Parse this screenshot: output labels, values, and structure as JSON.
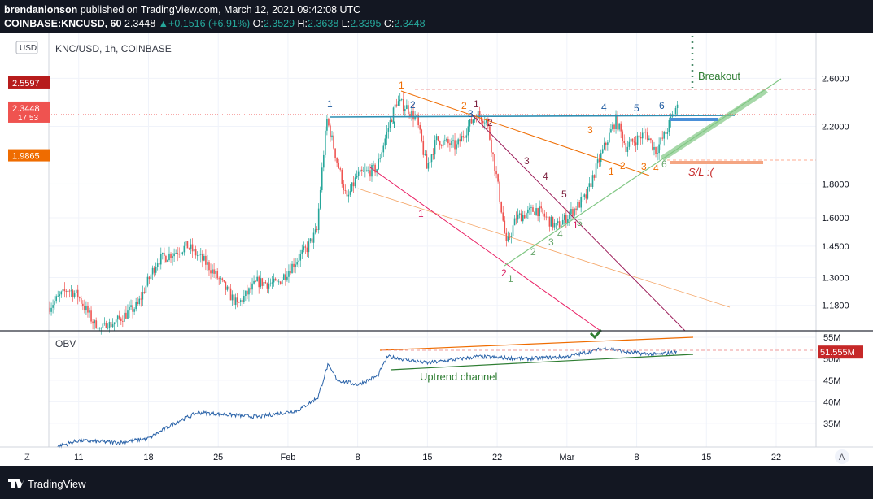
{
  "header": {
    "author": "brendanlonson",
    "published_text": "published on TradingView.com, March 12, 2021 09:42:08 UTC",
    "symbol": "COINBASE:KNCUSD, 60",
    "last": "2.3448",
    "change": "+0.1516 (+6.91%)",
    "o_label": "O:",
    "o_value": "2.3529",
    "h_label": "H:",
    "h_value": "2.3638",
    "l_label": "L:",
    "l_value": "2.3395",
    "c_label": "C:",
    "c_value": "2.3448"
  },
  "footer": {
    "brand": "TradingView"
  },
  "chart_data": [
    {
      "type": "candlestick",
      "title": "KNC/USD, 1h, COINBASE",
      "currency_button": "USD",
      "y_scale": "log",
      "ylim": [
        1.08,
        3.05
      ],
      "y_tick_labels": [
        "1.1800",
        "1.3000",
        "1.4500",
        "1.6000",
        "1.8000",
        "2.2000",
        "2.6000"
      ],
      "x_tick_labels": [
        "11",
        "18",
        "25",
        "Feb",
        "8",
        "15",
        "22",
        "Mar",
        "8",
        "15",
        "22"
      ],
      "x_tick_dates": [
        "2021-01-11",
        "2021-01-18",
        "2021-01-25",
        "2021-02-01",
        "2021-02-08",
        "2021-02-15",
        "2021-02-22",
        "2021-03-01",
        "2021-03-08",
        "2021-03-15",
        "2021-03-22"
      ],
      "xlim": [
        "2021-01-08",
        "2021-03-26"
      ],
      "price_badges": [
        {
          "label": "2.5597",
          "value": 2.5597,
          "color": "#b71c1c"
        },
        {
          "label": "2.3448",
          "sub": "17:53",
          "value": 2.3448,
          "color": "#ef5350"
        },
        {
          "label": "1.9865",
          "value": 1.9865,
          "color": "#ef6c00"
        }
      ],
      "series_anchors": [
        [
          "2021-01-08",
          1.17
        ],
        [
          "2021-01-10",
          1.25
        ],
        [
          "2021-01-11",
          1.22
        ],
        [
          "2021-01-13",
          1.08
        ],
        [
          "2021-01-15",
          1.12
        ],
        [
          "2021-01-17",
          1.18
        ],
        [
          "2021-01-19",
          1.38
        ],
        [
          "2021-01-22",
          1.45
        ],
        [
          "2021-01-24",
          1.36
        ],
        [
          "2021-01-27",
          1.18
        ],
        [
          "2021-01-29",
          1.28
        ],
        [
          "2021-01-31",
          1.27
        ],
        [
          "2021-02-03",
          1.44
        ],
        [
          "2021-02-04",
          1.53
        ],
        [
          "2021-02-05",
          2.25
        ],
        [
          "2021-02-06",
          1.95
        ],
        [
          "2021-02-07",
          1.7
        ],
        [
          "2021-02-08",
          1.85
        ],
        [
          "2021-02-10",
          1.9
        ],
        [
          "2021-02-12",
          2.4
        ],
        [
          "2021-02-13",
          2.35
        ],
        [
          "2021-02-14",
          2.25
        ],
        [
          "2021-02-15",
          1.9
        ],
        [
          "2021-02-16",
          2.1
        ],
        [
          "2021-02-18",
          2.05
        ],
        [
          "2021-02-20",
          2.3
        ],
        [
          "2021-02-21",
          2.25
        ],
        [
          "2021-02-22",
          1.85
        ],
        [
          "2021-02-23",
          1.45
        ],
        [
          "2021-02-24",
          1.6
        ],
        [
          "2021-02-26",
          1.65
        ],
        [
          "2021-02-28",
          1.55
        ],
        [
          "2021-03-01",
          1.6
        ],
        [
          "2021-03-03",
          1.72
        ],
        [
          "2021-03-04",
          1.9
        ],
        [
          "2021-03-06",
          2.25
        ],
        [
          "2021-03-07",
          2.05
        ],
        [
          "2021-03-08",
          2.1
        ],
        [
          "2021-03-09",
          2.15
        ],
        [
          "2021-03-10",
          2.02
        ],
        [
          "2021-03-11",
          2.15
        ],
        [
          "2021-03-12",
          2.3448
        ]
      ],
      "annotations": {
        "texts": [
          {
            "text": "Breakout",
            "color": "#2e7d32"
          },
          {
            "text": "S/L :(",
            "color": "#c62828"
          }
        ],
        "wave_labels_blue": [
          "1",
          "2",
          "3",
          "4",
          "5",
          "6"
        ],
        "wave_labels_orange": [
          "1",
          "2",
          "3",
          "1",
          "2",
          "3",
          "4"
        ],
        "wave_labels_purple": [
          "1",
          "2",
          "3",
          "4",
          "5"
        ],
        "wave_labels_pink": [
          "1",
          "2",
          "1"
        ],
        "wave_labels_green": [
          "1",
          "2",
          "3",
          "4",
          "5",
          "6"
        ],
        "wave_labels_teal": [
          "1"
        ]
      }
    },
    {
      "type": "line",
      "title": "OBV",
      "y_unit": "M",
      "ylim": [
        29.5,
        56.5
      ],
      "y_tick_labels": [
        "35M",
        "40M",
        "45M",
        "50M",
        "55M"
      ],
      "y_tick_values": [
        35,
        40,
        45,
        50,
        55
      ],
      "last_badge": "51.555M",
      "last_value": 51.555,
      "channel_label": "Uptrend channel",
      "series_anchors": [
        [
          "2021-01-08",
          29.0
        ],
        [
          "2021-01-11",
          31.0
        ],
        [
          "2021-01-15",
          30.5
        ],
        [
          "2021-01-18",
          31.5
        ],
        [
          "2021-01-21",
          35.5
        ],
        [
          "2021-01-23",
          37.5
        ],
        [
          "2021-01-26",
          37.0
        ],
        [
          "2021-01-29",
          36.5
        ],
        [
          "2021-02-02",
          38.0
        ],
        [
          "2021-02-04",
          41.0
        ],
        [
          "2021-02-05",
          48.5
        ],
        [
          "2021-02-06",
          45.0
        ],
        [
          "2021-02-08",
          44.0
        ],
        [
          "2021-02-10",
          46.0
        ],
        [
          "2021-02-11",
          50.5
        ],
        [
          "2021-02-15",
          49.0
        ],
        [
          "2021-02-20",
          50.5
        ],
        [
          "2021-02-25",
          50.0
        ],
        [
          "2021-03-01",
          50.5
        ],
        [
          "2021-03-05",
          52.5
        ],
        [
          "2021-03-07",
          51.5
        ],
        [
          "2021-03-10",
          51.0
        ],
        [
          "2021-03-12",
          51.555
        ]
      ]
    }
  ]
}
